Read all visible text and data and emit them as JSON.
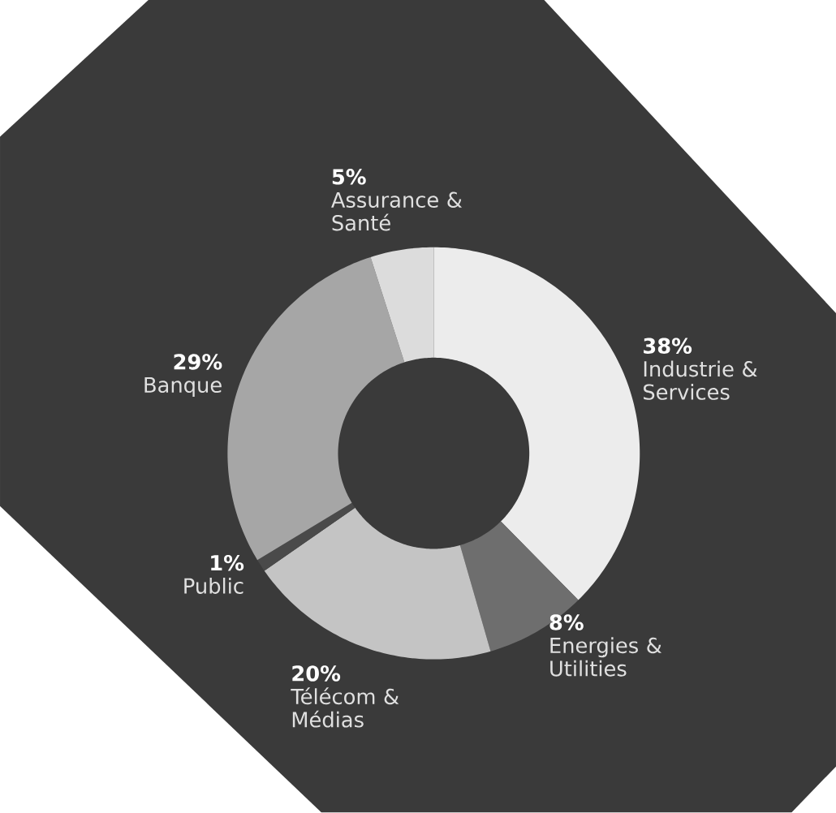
{
  "chart_data": {
    "type": "donut",
    "categories": [
      "Industrie & Services",
      "Energies & Utilities",
      "Télécom & Médias",
      "Public",
      "Banque",
      "Assurance & Santé"
    ],
    "values": [
      38,
      8,
      20,
      1,
      29,
      5
    ],
    "value_labels": [
      "38%",
      "8%",
      "20%",
      "1%",
      "29%",
      "5%"
    ],
    "colors": [
      "#ececec",
      "#6e6e6e",
      "#c4c4c4",
      "#4a4a4a",
      "#a6a6a6",
      "#dcdcdc"
    ]
  }
}
